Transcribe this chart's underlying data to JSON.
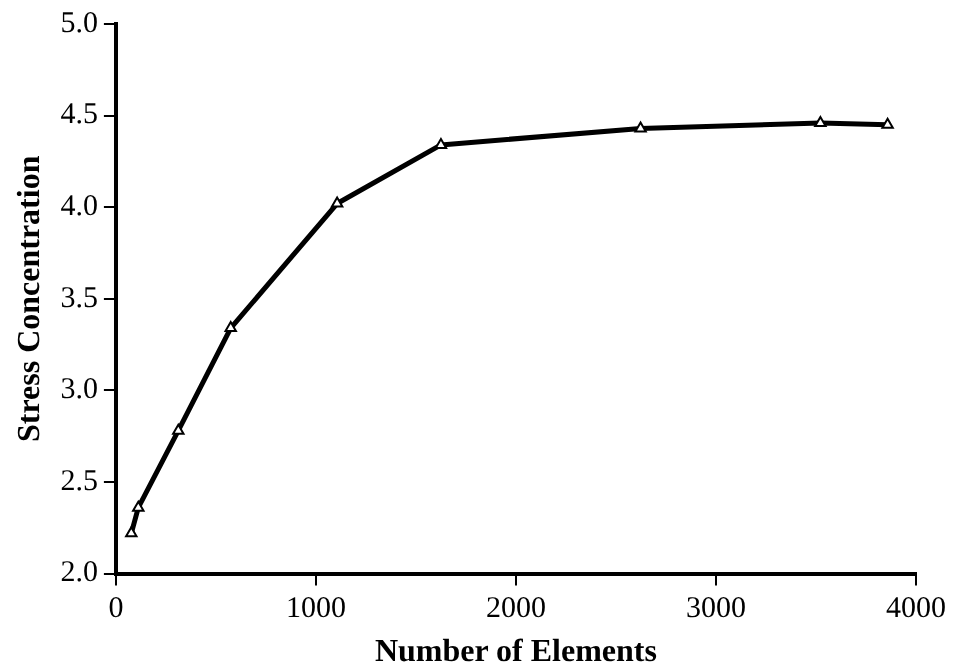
{
  "chart_data": {
    "type": "line",
    "xlabel": "Number of Elements",
    "ylabel": "Stress Concentration",
    "x": [
      77,
      112,
      312,
      574,
      1106,
      1625,
      2623,
      3522,
      3858
    ],
    "series": [
      {
        "color": "#000000",
        "values": [
          2.22,
          2.36,
          2.78,
          3.34,
          4.02,
          4.34,
          4.43,
          4.46,
          4.45
        ]
      }
    ],
    "xlim": [
      0,
      4000
    ],
    "xticks": [
      0,
      1000,
      2000,
      3000,
      4000
    ],
    "ylim": [
      2.0,
      5.0
    ],
    "yticks": [
      {
        "value": 2,
        "label": "2.0"
      },
      {
        "value": 2.5,
        "label": "2.5"
      },
      {
        "value": 3,
        "label": "3.0"
      },
      {
        "value": 3.5,
        "label": "3.5"
      },
      {
        "value": 4,
        "label": "4.0"
      },
      {
        "value": 4.5,
        "label": "4.5"
      },
      {
        "value": 5,
        "label": "5.0"
      }
    ],
    "grid": false,
    "legend": false,
    "marker": "triangle",
    "line_style": "solid"
  }
}
